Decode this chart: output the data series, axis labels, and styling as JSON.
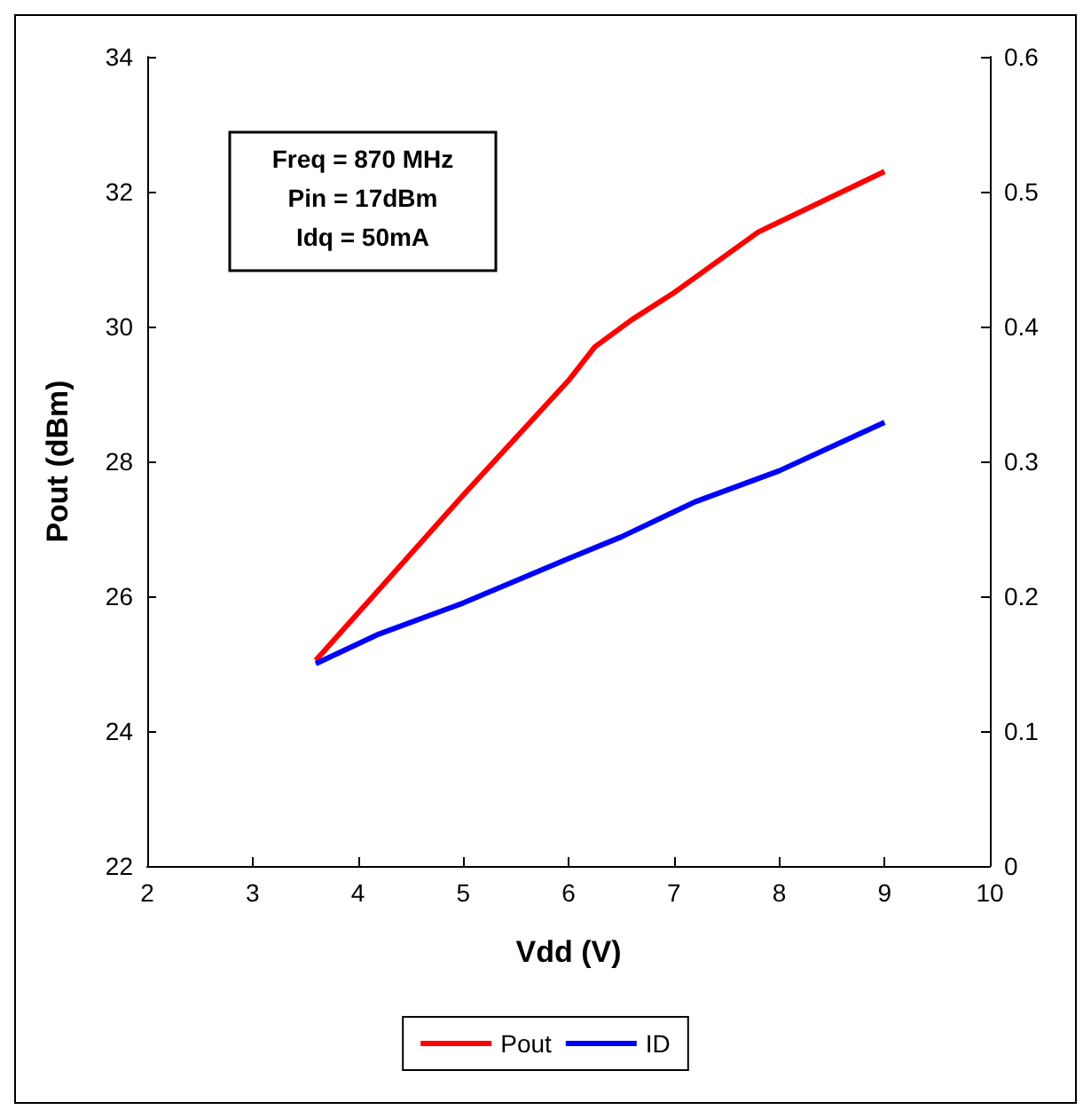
{
  "chart_data": {
    "type": "line",
    "xlabel": "Vdd (V)",
    "ylabel": "Pout (dBm)",
    "annotations": [
      "Freq = 870 MHz",
      "Pin = 17dBm",
      "Idq = 50mA"
    ],
    "xlim": [
      2,
      10
    ],
    "xticks": [
      2,
      3,
      4,
      5,
      6,
      7,
      8,
      9,
      10
    ],
    "ylim": [
      22,
      34
    ],
    "yticks": [
      22,
      24,
      26,
      28,
      30,
      32,
      34
    ],
    "y2lim": [
      0,
      0.6
    ],
    "y2ticks": [
      0,
      0.1,
      0.2,
      0.3,
      0.4,
      0.5,
      0.6
    ],
    "series": [
      {
        "name": "Pout",
        "color": "#ff0000",
        "x": [
          3.6,
          4.2,
          5,
          6,
          6.25,
          6.6,
          7,
          7.8,
          9
        ],
        "values": [
          25.05,
          26.1,
          27.5,
          29.2,
          29.7,
          30.1,
          30.5,
          31.4,
          32.3
        ]
      },
      {
        "name": "ID",
        "color": "#0000ff",
        "axis": "y2",
        "x": [
          3.6,
          4.2,
          5,
          6,
          6.5,
          7.2,
          8,
          9
        ],
        "values": [
          0.15,
          0.172,
          0.195,
          0.228,
          0.244,
          0.27,
          0.293,
          0.329
        ]
      }
    ],
    "grid": false,
    "legend": "bottom",
    "marker": "none",
    "line_style": "solid"
  }
}
